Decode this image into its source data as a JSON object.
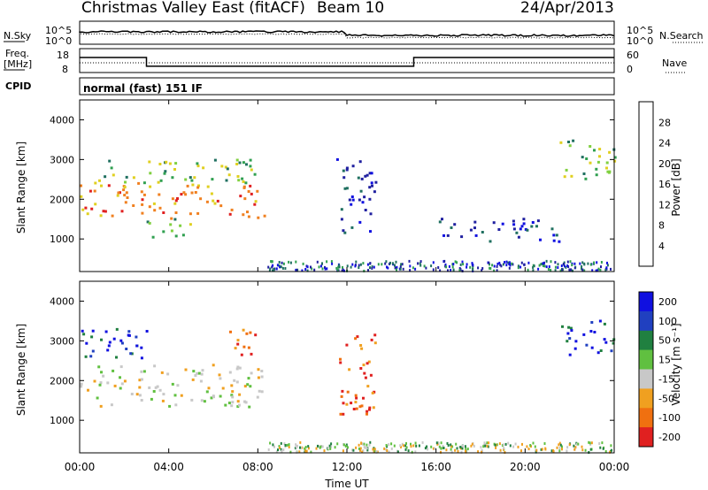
{
  "header": {
    "station": "Christmas Valley East (fitACF)",
    "beam": "Beam 10",
    "date": "24/Apr/2013"
  },
  "noise_panel": {
    "left_label": "N.Sky",
    "right_label": "N.Search",
    "left_ticks": [
      "10^5",
      "10^0"
    ],
    "right_ticks": [
      "10^5",
      "10^0"
    ]
  },
  "freq_panel": {
    "left_label_1": "Freq.",
    "left_label_2": "[MHz]",
    "right_label": "Nave",
    "left_ticks": [
      "18",
      "8"
    ],
    "right_ticks": [
      "60",
      "0"
    ]
  },
  "cpid": {
    "label": "CPID",
    "value": "normal (fast) 151 IF"
  },
  "axes": {
    "ylabel": "Slant Range [km]",
    "xlabel": "Time UT",
    "y_ticks": [
      "1000",
      "2000",
      "3000",
      "4000"
    ],
    "x_ticks": [
      "00:00",
      "04:00",
      "08:00",
      "12:00",
      "16:00",
      "20:00",
      "00:00"
    ]
  },
  "power_colorbar": {
    "label": "Power [dB]",
    "ticks": [
      "4",
      "8",
      "12",
      "16",
      "20",
      "24",
      "28"
    ],
    "colors": [
      "#1010e0",
      "#2020a0",
      "#207060",
      "#30a050",
      "#80d040",
      "#e0d020",
      "#f08020",
      "#e02020"
    ]
  },
  "velocity_colorbar": {
    "label": "Velocity [m s⁻¹]",
    "ticks": [
      "200",
      "100",
      "50",
      "15",
      "-15",
      "-50",
      "-100",
      "-200"
    ],
    "colors": [
      "#1010e0",
      "#2040c0",
      "#208040",
      "#60c040",
      "#c8c8c8",
      "#f0a020",
      "#f07010",
      "#e02020"
    ]
  },
  "chart_data": {
    "type": "heatmap",
    "x_range_hours": [
      0,
      24
    ],
    "y_range_km": [
      180,
      4500
    ],
    "power_regions": [
      {
        "t0": 0.0,
        "t1": 8.3,
        "r0": 1500,
        "r1": 2400,
        "level": "high"
      },
      {
        "t0": 0.5,
        "t1": 8.0,
        "r0": 2400,
        "r1": 3000,
        "level": "mid"
      },
      {
        "t0": 3.0,
        "t1": 5.0,
        "r0": 1000,
        "r1": 1500,
        "level": "mid"
      },
      {
        "t0": 11.5,
        "t1": 13.3,
        "r0": 1100,
        "r1": 3000,
        "level": "low"
      },
      {
        "t0": 16.0,
        "t1": 21.5,
        "r0": 900,
        "r1": 1500,
        "level": "low"
      },
      {
        "t0": 21.5,
        "t1": 24.0,
        "r0": 2500,
        "r1": 3500,
        "level": "mid"
      }
    ],
    "velocity_regions": [
      {
        "t0": 0.0,
        "t1": 8.3,
        "r0": 1300,
        "r1": 2400,
        "vel": "near-zero"
      },
      {
        "t0": 0.0,
        "t1": 3.0,
        "r0": 2400,
        "r1": 3300,
        "vel": "positive"
      },
      {
        "t0": 6.5,
        "t1": 8.0,
        "r0": 2600,
        "r1": 3300,
        "vel": "negative"
      },
      {
        "t0": 11.5,
        "t1": 13.3,
        "r0": 1100,
        "r1": 3200,
        "vel": "negative"
      },
      {
        "t0": 21.5,
        "t1": 24.0,
        "r0": 2600,
        "r1": 3500,
        "vel": "positive"
      }
    ],
    "frequency_mhz": [
      {
        "t0": 0.0,
        "t1": 3.0,
        "value": 14.5
      },
      {
        "t0": 3.0,
        "t1": 15.0,
        "value": 10.2
      },
      {
        "t0": 15.0,
        "t1": 24.0,
        "value": 14.5
      }
    ]
  }
}
